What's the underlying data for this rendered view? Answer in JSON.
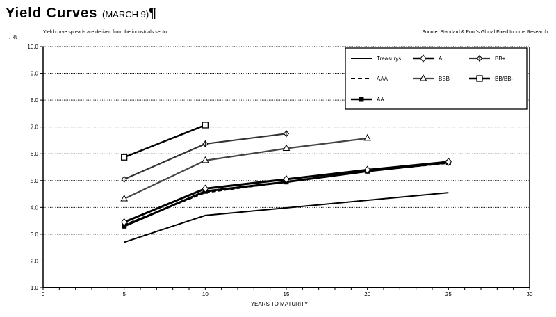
{
  "header": {
    "title": "Yield Curves",
    "title_date": "(MARCH 9)",
    "pilcrow": "¶",
    "subtitle": "Yield curve spreads are derived from the industrials sector.",
    "source": "Source: Standard & Poor's Global Fixed Income Research",
    "unit_label": "%",
    "unit_arrow": "→"
  },
  "chart_data": {
    "type": "line",
    "title": "Yield Curves (MARCH 9)",
    "subtitle": "Yield curve spreads are derived from the industrials sector.",
    "source": "Source: Standard & Poor's Global Fixed Income Research",
    "xlabel": "YEARS TO MATURITY",
    "ylabel": "%",
    "xlim": [
      0,
      30
    ],
    "ylim": [
      1.0,
      10.0
    ],
    "x_ticks": [
      "0",
      "5",
      "10",
      "15",
      "20",
      "25",
      "30"
    ],
    "y_ticks": [
      "1.0",
      "2.0",
      "3.0",
      "4.0",
      "5.0",
      "6.0",
      "7.0",
      "8.0",
      "9.0",
      "10.0"
    ],
    "grid": "horizontal dotted",
    "legend_position": "top-right inside",
    "series": [
      {
        "name": "Treasurys",
        "marker": "none",
        "style": "solid",
        "x": [
          5,
          10,
          25
        ],
        "values": [
          2.7,
          3.7,
          4.55
        ]
      },
      {
        "name": "AAA",
        "marker": "none",
        "style": "dashed",
        "x": [
          5,
          10,
          15,
          20,
          25
        ],
        "values": [
          3.35,
          4.55,
          4.95,
          5.35,
          5.65
        ]
      },
      {
        "name": "AA",
        "marker": "filled-square",
        "style": "solid",
        "x": [
          5,
          10,
          15,
          20,
          25
        ],
        "values": [
          3.3,
          4.6,
          4.95,
          5.35,
          5.68
        ]
      },
      {
        "name": "A",
        "marker": "open-diamond",
        "style": "solid",
        "x": [
          5,
          10,
          15,
          20,
          25
        ],
        "values": [
          3.45,
          4.7,
          5.05,
          5.4,
          5.7
        ]
      },
      {
        "name": "BBB",
        "marker": "open-triangle",
        "style": "solid",
        "x": [
          5,
          10,
          15,
          20
        ],
        "values": [
          4.32,
          5.75,
          6.2,
          6.58
        ]
      },
      {
        "name": "BB+",
        "marker": "diamond-cross",
        "style": "solid",
        "x": [
          5,
          10,
          15
        ],
        "values": [
          5.05,
          6.37,
          6.75
        ]
      },
      {
        "name": "BB/BB-",
        "marker": "open-square",
        "style": "solid",
        "x": [
          5,
          10
        ],
        "values": [
          5.87,
          7.07
        ]
      }
    ]
  },
  "legend": {
    "items": [
      "Treasurys",
      "A",
      "BB+",
      "AAA",
      "BBB",
      "BB/BB-",
      "AA"
    ]
  }
}
